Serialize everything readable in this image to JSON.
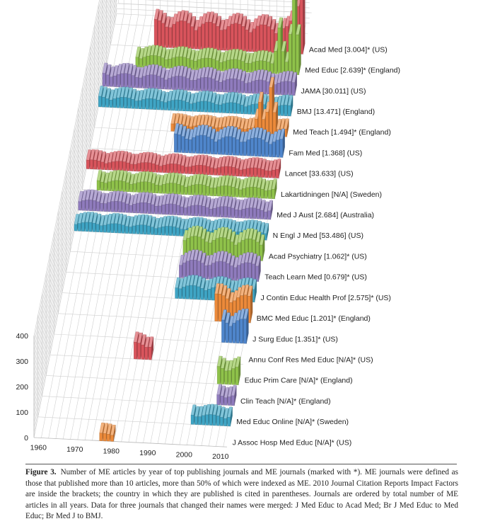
{
  "chart_data": {
    "type": "bar",
    "subtype": "3d-ridge-bars",
    "x": [
      1960,
      1970,
      1980,
      1990,
      2000,
      2010
    ],
    "xlim": [
      1958,
      2011
    ],
    "ylim": [
      0,
      400
    ],
    "yticks": [
      0,
      100,
      200,
      300,
      400
    ],
    "xticks": [
      1960,
      1970,
      1980,
      1990,
      2000,
      2010
    ],
    "grid": true,
    "series": [
      {
        "name": "Acad Med [3.004]* (US)",
        "color": "#d9545c",
        "start": 1970,
        "end": 2010,
        "level": 90,
        "peaks": [
          [
            2008,
            260
          ],
          [
            2010,
            380
          ]
        ]
      },
      {
        "name": "Med Educ [2.639]* (England)",
        "color": "#8fc24a",
        "start": 1966,
        "end": 2010,
        "level": 40,
        "peaks": [
          [
            2005,
            180
          ],
          [
            2009,
            320
          ]
        ]
      },
      {
        "name": "JAMA [30.011] (US)",
        "color": "#8f7bbd",
        "start": 1958,
        "end": 2010,
        "level": 45,
        "peaks": []
      },
      {
        "name": "BMJ [13.471] (England)",
        "color": "#3fa5c5",
        "start": 1958,
        "end": 2010,
        "level": 35,
        "peaks": []
      },
      {
        "name": "Med Teach [1.494]* (England)",
        "color": "#ec8a3a",
        "start": 1979,
        "end": 2010,
        "level": 25,
        "peaks": [
          [
            2003,
            130
          ],
          [
            2006,
            190
          ]
        ]
      },
      {
        "name": "Fam Med [1.368] (US)",
        "color": "#4f86cc",
        "start": 1981,
        "end": 2010,
        "level": 60,
        "peaks": []
      },
      {
        "name": "Lancet [33.633] (US)",
        "color": "#d9545c",
        "start": 1958,
        "end": 2010,
        "level": 30,
        "peaks": []
      },
      {
        "name": "Lakartidningen [N/A] (Sweden)",
        "color": "#8fc24a",
        "start": 1962,
        "end": 2010,
        "level": 35,
        "peaks": []
      },
      {
        "name": "Med J Aust [2.684] (Australia)",
        "color": "#8f7bbd",
        "start": 1958,
        "end": 2010,
        "level": 35,
        "peaks": []
      },
      {
        "name": "N Engl J Med [53.486] (US)",
        "color": "#3fa5c5",
        "start": 1958,
        "end": 2010,
        "level": 30,
        "peaks": []
      },
      {
        "name": "Acad Psychiatry [1.062]* (US)",
        "color": "#8fc24a",
        "start": 1989,
        "end": 2010,
        "level": 70,
        "peaks": []
      },
      {
        "name": "Teach Learn Med [0.679]* (US)",
        "color": "#8f7bbd",
        "start": 1989,
        "end": 2010,
        "level": 60,
        "peaks": []
      },
      {
        "name": "J Contin Educ Health Prof [2.575]* (US)",
        "color": "#3fa5c5",
        "start": 1989,
        "end": 2010,
        "level": 45,
        "peaks": []
      },
      {
        "name": "BMC Med Educ [1.201]* (England)",
        "color": "#ec8a3a",
        "start": 2001,
        "end": 2010,
        "level": 90,
        "peaks": []
      },
      {
        "name": "J Surg Educ [1.351]* (US)",
        "color": "#4f86cc",
        "start": 2004,
        "end": 2010,
        "level": 80,
        "peaks": []
      },
      {
        "name": "Annu Conf Res Med Educ [N/A]* (US)",
        "color": "#d9545c",
        "start": 1981,
        "end": 1985,
        "level": 55,
        "peaks": []
      },
      {
        "name": "Educ Prim Care [N/A]* (England)",
        "color": "#8fc24a",
        "start": 2005,
        "end": 2010,
        "level": 60,
        "peaks": []
      },
      {
        "name": "Clin Teach [N/A]* (England)",
        "color": "#8f7bbd",
        "start": 2006,
        "end": 2010,
        "level": 35,
        "peaks": []
      },
      {
        "name": "Med Educ Online [N/A]* (Sweden)",
        "color": "#3fa5c5",
        "start": 2000,
        "end": 2010,
        "level": 35,
        "peaks": []
      },
      {
        "name": "J Assoc Hosp Med Educ [N/A]* (US)",
        "color": "#ec8a3a",
        "start": 1976,
        "end": 1979,
        "level": 25,
        "peaks": []
      }
    ]
  },
  "caption": {
    "figure_label": "Figure 3.",
    "text": "Number of ME articles by year of top publishing journals and ME journals (marked with *). ME journals were defined as those that published more than 10 articles, more than 50% of which were indexed as ME. 2010 Journal Citation Reports Impact Factors are inside the brackets; the country in which they are published is cited in parentheses. Journals are ordered by total number of ME articles in all years. Data for three journals that changed their names were merged: J Med Educ to Acad Med; Br J Med Educ to Med Educ; Br Med J to BMJ."
  }
}
